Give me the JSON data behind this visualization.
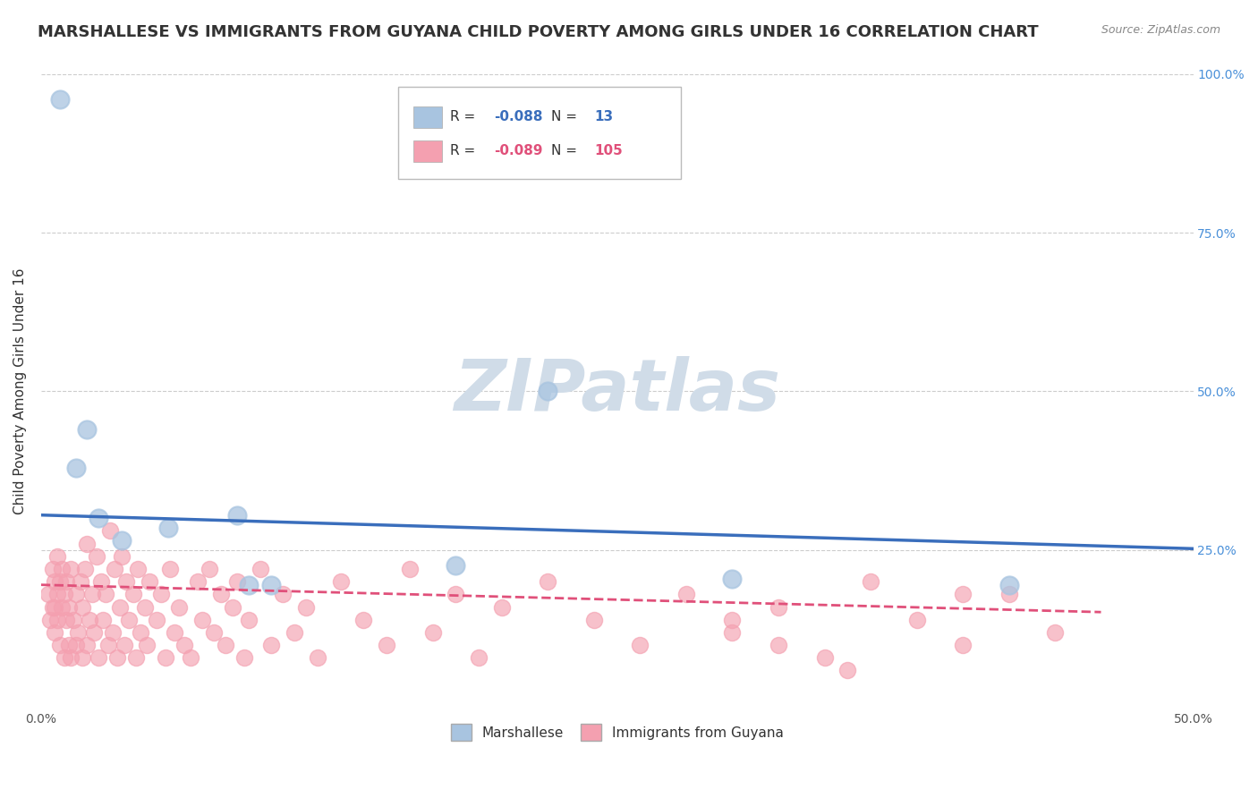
{
  "title": "MARSHALLESE VS IMMIGRANTS FROM GUYANA CHILD POVERTY AMONG GIRLS UNDER 16 CORRELATION CHART",
  "source": "Source: ZipAtlas.com",
  "ylabel": "Child Poverty Among Girls Under 16",
  "xlim": [
    0,
    0.5
  ],
  "ylim": [
    0,
    1.0
  ],
  "xticks": [
    0.0,
    0.1,
    0.2,
    0.3,
    0.4,
    0.5
  ],
  "yticks": [
    0.0,
    0.25,
    0.5,
    0.75,
    1.0
  ],
  "xticklabels": [
    "0.0%",
    "",
    "",
    "",
    "",
    "50.0%"
  ],
  "yticklabels": [
    "",
    "25.0%",
    "50.0%",
    "75.0%",
    "100.0%"
  ],
  "blue_R": -0.088,
  "blue_N": 13,
  "pink_R": -0.089,
  "pink_N": 105,
  "blue_color": "#a8c4e0",
  "pink_color": "#f4a0b0",
  "blue_line_color": "#3a6ebc",
  "pink_line_color": "#e0507a",
  "background_color": "#ffffff",
  "watermark": "ZIPatlas",
  "watermark_color": "#d0dce8",
  "blue_scatter_x": [
    0.008,
    0.02,
    0.015,
    0.025,
    0.035,
    0.055,
    0.085,
    0.09,
    0.1,
    0.18,
    0.22,
    0.3,
    0.42
  ],
  "blue_scatter_y": [
    0.96,
    0.44,
    0.38,
    0.3,
    0.265,
    0.285,
    0.305,
    0.195,
    0.195,
    0.225,
    0.5,
    0.205,
    0.195
  ],
  "pink_scatter_x": [
    0.003,
    0.004,
    0.005,
    0.005,
    0.006,
    0.006,
    0.006,
    0.007,
    0.007,
    0.007,
    0.008,
    0.008,
    0.009,
    0.009,
    0.01,
    0.01,
    0.011,
    0.011,
    0.012,
    0.012,
    0.013,
    0.013,
    0.014,
    0.015,
    0.015,
    0.016,
    0.017,
    0.018,
    0.018,
    0.019,
    0.02,
    0.02,
    0.021,
    0.022,
    0.023,
    0.024,
    0.025,
    0.026,
    0.027,
    0.028,
    0.029,
    0.03,
    0.031,
    0.032,
    0.033,
    0.034,
    0.035,
    0.036,
    0.037,
    0.038,
    0.04,
    0.041,
    0.042,
    0.043,
    0.045,
    0.046,
    0.047,
    0.05,
    0.052,
    0.054,
    0.056,
    0.058,
    0.06,
    0.062,
    0.065,
    0.068,
    0.07,
    0.073,
    0.075,
    0.078,
    0.08,
    0.083,
    0.085,
    0.088,
    0.09,
    0.095,
    0.1,
    0.105,
    0.11,
    0.115,
    0.12,
    0.13,
    0.14,
    0.15,
    0.16,
    0.17,
    0.18,
    0.19,
    0.2,
    0.22,
    0.24,
    0.26,
    0.28,
    0.3,
    0.32,
    0.34,
    0.36,
    0.38,
    0.4,
    0.42,
    0.44,
    0.3,
    0.32,
    0.35,
    0.4
  ],
  "pink_scatter_y": [
    0.18,
    0.14,
    0.22,
    0.16,
    0.12,
    0.2,
    0.16,
    0.24,
    0.14,
    0.18,
    0.1,
    0.2,
    0.16,
    0.22,
    0.08,
    0.18,
    0.14,
    0.2,
    0.1,
    0.16,
    0.08,
    0.22,
    0.14,
    0.1,
    0.18,
    0.12,
    0.2,
    0.08,
    0.16,
    0.22,
    0.1,
    0.26,
    0.14,
    0.18,
    0.12,
    0.24,
    0.08,
    0.2,
    0.14,
    0.18,
    0.1,
    0.28,
    0.12,
    0.22,
    0.08,
    0.16,
    0.24,
    0.1,
    0.2,
    0.14,
    0.18,
    0.08,
    0.22,
    0.12,
    0.16,
    0.1,
    0.2,
    0.14,
    0.18,
    0.08,
    0.22,
    0.12,
    0.16,
    0.1,
    0.08,
    0.2,
    0.14,
    0.22,
    0.12,
    0.18,
    0.1,
    0.16,
    0.2,
    0.08,
    0.14,
    0.22,
    0.1,
    0.18,
    0.12,
    0.16,
    0.08,
    0.2,
    0.14,
    0.1,
    0.22,
    0.12,
    0.18,
    0.08,
    0.16,
    0.2,
    0.14,
    0.1,
    0.18,
    0.12,
    0.16,
    0.08,
    0.2,
    0.14,
    0.1,
    0.18,
    0.12,
    0.14,
    0.1,
    0.06,
    0.18
  ],
  "blue_line_x0": 0.0,
  "blue_line_x1": 0.5,
  "blue_line_y0": 0.305,
  "blue_line_y1": 0.252,
  "pink_line_x0": 0.0,
  "pink_line_x1": 0.46,
  "pink_line_y0": 0.195,
  "pink_line_y1": 0.152,
  "grid_color": "#cccccc",
  "title_fontsize": 13,
  "axis_label_fontsize": 11,
  "tick_fontsize": 10
}
